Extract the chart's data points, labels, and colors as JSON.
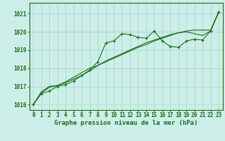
{
  "x": [
    0,
    1,
    2,
    3,
    4,
    5,
    6,
    7,
    8,
    9,
    10,
    11,
    12,
    13,
    14,
    15,
    16,
    17,
    18,
    19,
    20,
    21,
    22,
    23
  ],
  "series1": [
    1016.0,
    1016.6,
    1016.75,
    1017.0,
    1017.1,
    1017.3,
    1017.6,
    1017.9,
    1018.35,
    1019.4,
    1019.5,
    1019.9,
    1019.85,
    1019.7,
    1019.65,
    1020.05,
    1019.5,
    1019.2,
    1019.15,
    1019.5,
    1019.6,
    1019.55,
    1020.05,
    1021.1
  ],
  "series2": [
    1016.0,
    1016.7,
    1017.0,
    1017.05,
    1017.2,
    1017.4,
    1017.6,
    1017.85,
    1018.15,
    1018.4,
    1018.6,
    1018.8,
    1019.0,
    1019.2,
    1019.4,
    1019.55,
    1019.7,
    1019.85,
    1019.95,
    1020.0,
    1019.9,
    1019.8,
    1020.05,
    1021.1
  ],
  "series3": [
    1016.0,
    1016.65,
    1016.95,
    1017.05,
    1017.25,
    1017.5,
    1017.75,
    1018.0,
    1018.15,
    1018.35,
    1018.55,
    1018.75,
    1018.95,
    1019.15,
    1019.3,
    1019.5,
    1019.65,
    1019.8,
    1019.95,
    1020.05,
    1020.1,
    1020.1,
    1020.1,
    1021.1
  ],
  "bg_color": "#cceee8",
  "grid_color": "#aad8cc",
  "line_color": "#1a6e1a",
  "xlabel": "Graphe pression niveau de la mer (hPa)",
  "ylim_min": 1015.7,
  "ylim_max": 1021.6,
  "yticks": [
    1016,
    1017,
    1018,
    1019,
    1020,
    1021
  ],
  "xticks": [
    0,
    1,
    2,
    3,
    4,
    5,
    6,
    7,
    8,
    9,
    10,
    11,
    12,
    13,
    14,
    15,
    16,
    17,
    18,
    19,
    20,
    21,
    22,
    23
  ],
  "tick_fontsize": 5.5,
  "xlabel_fontsize": 6.5
}
